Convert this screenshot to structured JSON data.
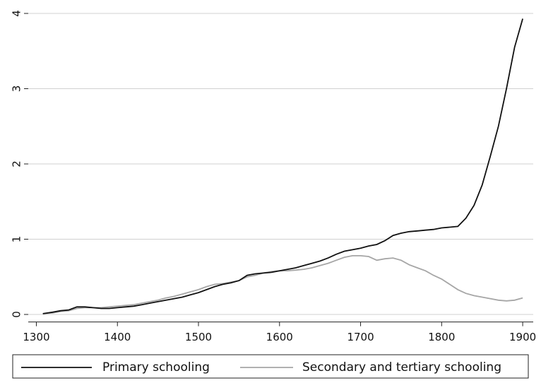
{
  "chart_data": {
    "type": "line",
    "x": [
      1308,
      1320,
      1330,
      1340,
      1350,
      1360,
      1370,
      1380,
      1390,
      1400,
      1410,
      1420,
      1430,
      1440,
      1450,
      1460,
      1470,
      1480,
      1490,
      1500,
      1510,
      1520,
      1530,
      1540,
      1550,
      1560,
      1570,
      1580,
      1590,
      1600,
      1610,
      1620,
      1630,
      1640,
      1650,
      1660,
      1670,
      1680,
      1690,
      1700,
      1710,
      1720,
      1730,
      1740,
      1750,
      1760,
      1770,
      1780,
      1790,
      1800,
      1810,
      1820,
      1830,
      1840,
      1850,
      1860,
      1870,
      1880,
      1890,
      1900
    ],
    "series": [
      {
        "name": "Primary schooling",
        "color": "#111111",
        "values": [
          0.01,
          0.03,
          0.05,
          0.06,
          0.1,
          0.1,
          0.09,
          0.08,
          0.08,
          0.09,
          0.1,
          0.11,
          0.13,
          0.15,
          0.17,
          0.19,
          0.21,
          0.23,
          0.26,
          0.29,
          0.33,
          0.37,
          0.4,
          0.42,
          0.45,
          0.52,
          0.54,
          0.55,
          0.56,
          0.58,
          0.6,
          0.62,
          0.65,
          0.68,
          0.71,
          0.75,
          0.8,
          0.84,
          0.86,
          0.88,
          0.91,
          0.93,
          0.98,
          1.05,
          1.08,
          1.1,
          1.11,
          1.12,
          1.13,
          1.15,
          1.16,
          1.17,
          1.28,
          1.45,
          1.72,
          2.1,
          2.5,
          3.0,
          3.55,
          3.93
        ]
      },
      {
        "name": "Secondary and tertiary schooling",
        "color": "#a6a6a6",
        "values": [
          0.01,
          0.02,
          0.04,
          0.05,
          0.08,
          0.09,
          0.09,
          0.09,
          0.1,
          0.11,
          0.12,
          0.13,
          0.15,
          0.17,
          0.19,
          0.22,
          0.24,
          0.27,
          0.3,
          0.33,
          0.37,
          0.4,
          0.41,
          0.43,
          0.45,
          0.5,
          0.52,
          0.55,
          0.57,
          0.58,
          0.58,
          0.59,
          0.6,
          0.62,
          0.65,
          0.68,
          0.72,
          0.76,
          0.78,
          0.78,
          0.77,
          0.72,
          0.74,
          0.75,
          0.72,
          0.66,
          0.62,
          0.58,
          0.52,
          0.47,
          0.4,
          0.33,
          0.28,
          0.25,
          0.23,
          0.21,
          0.19,
          0.18,
          0.19,
          0.22
        ]
      }
    ],
    "xlim": [
      1290,
      1913
    ],
    "ylim": [
      -0.1,
      4.1
    ],
    "xticks": [
      1300,
      1400,
      1500,
      1600,
      1700,
      1800,
      1900
    ],
    "yticks": [
      0,
      1,
      2,
      3,
      4
    ],
    "grid": true,
    "legend": "bottom"
  }
}
